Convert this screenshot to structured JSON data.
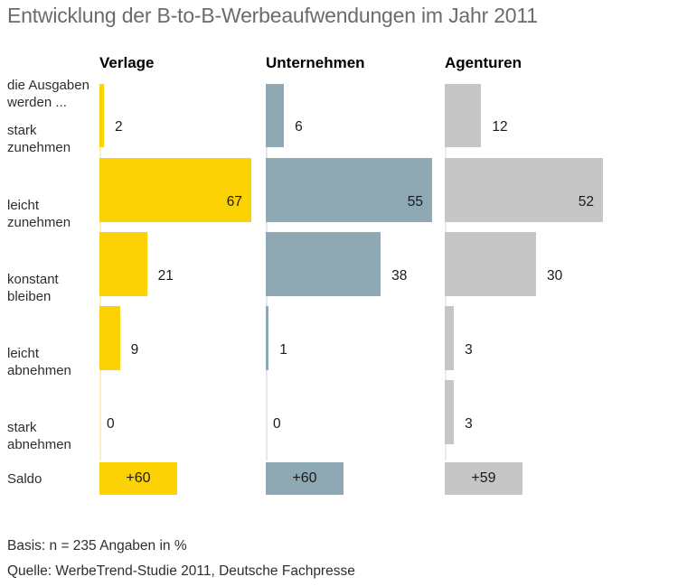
{
  "title": "Entwicklung der B-to-B-Werbeaufwendungen im Jahr 2011",
  "chart_data": {
    "type": "bar",
    "orientation": "horizontal",
    "title": "Entwicklung der B-to-B-Werbeaufwendungen im Jahr 2011",
    "unit": "%",
    "grid": false,
    "legend_position": "column-headers",
    "intro_label": [
      "die Ausgaben",
      "werden ..."
    ],
    "categories": [
      [
        "stark",
        "zunehmen"
      ],
      [
        "leicht",
        "zunehmen"
      ],
      [
        "konstant",
        "bleiben"
      ],
      [
        "leicht",
        "abnehmen"
      ],
      [
        "stark",
        "abnehmen"
      ]
    ],
    "saldo_label": "Saldo",
    "series": [
      {
        "name": "Verlage",
        "color": "#FCD205",
        "track_color": "#FAF0C2",
        "values": [
          2,
          67,
          21,
          9,
          0
        ],
        "saldo": "+60"
      },
      {
        "name": "Unternehmen",
        "color": "#8EA9B4",
        "track_color": "#E3EAED",
        "values": [
          6,
          55,
          38,
          1,
          0
        ],
        "saldo": "+60"
      },
      {
        "name": "Agenturen",
        "color": "#C6C6C7",
        "track_color": "#ECECEC",
        "values": [
          12,
          52,
          30,
          3,
          3
        ],
        "saldo": "+59"
      }
    ],
    "value_range": [
      0,
      100
    ]
  },
  "footer": {
    "basis": "Basis: n = 235 Angaben in %",
    "source": "Quelle: WerbeTrend-Studie 2011, Deutsche Fachpresse"
  }
}
